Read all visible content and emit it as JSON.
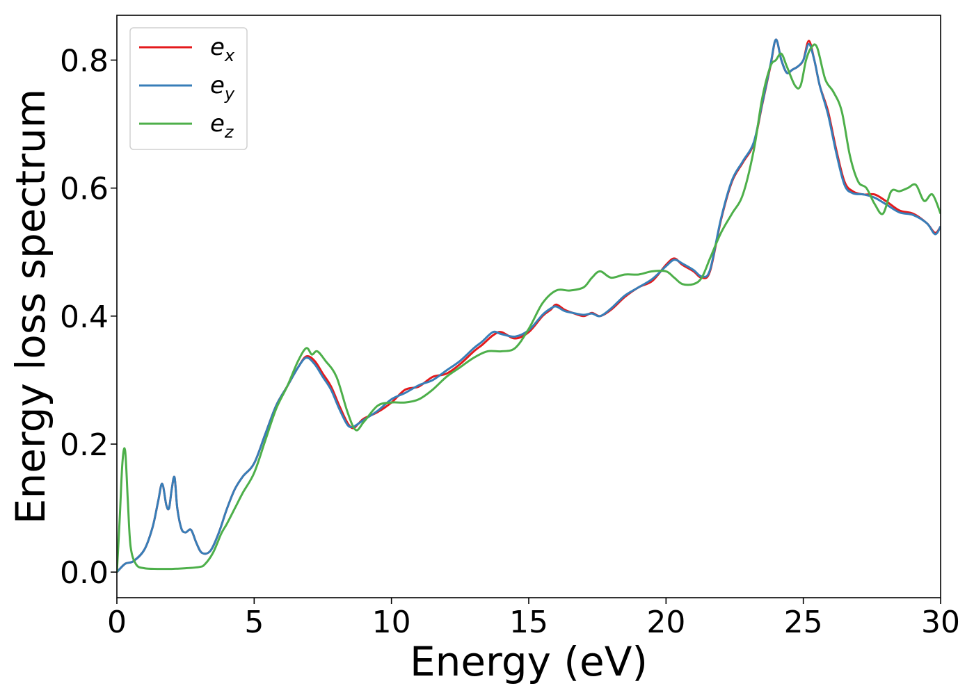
{
  "chart_data": {
    "type": "line",
    "title": "",
    "xlabel": "Energy (eV)",
    "ylabel": "Energy loss spectrum",
    "xlim": [
      0,
      30
    ],
    "ylim": [
      -0.04,
      0.87
    ],
    "xticks": [
      0,
      5,
      10,
      15,
      20,
      25,
      30
    ],
    "xtick_labels": [
      "0",
      "5",
      "10",
      "15",
      "20",
      "25",
      "30"
    ],
    "yticks": [
      0.0,
      0.2,
      0.4,
      0.6,
      0.8
    ],
    "ytick_labels": [
      "0.0",
      "0.2",
      "0.4",
      "0.6",
      "0.8"
    ],
    "grid": false,
    "legend_position": "top-left",
    "series": [
      {
        "name": "e_x",
        "legend_base": "e",
        "legend_sub": "x",
        "color": "#e41a1c",
        "x": [
          0,
          0.3,
          0.6,
          1.0,
          1.3,
          1.5,
          1.65,
          1.8,
          1.9,
          2.0,
          2.1,
          2.2,
          2.35,
          2.5,
          2.7,
          2.9,
          3.1,
          3.4,
          3.7,
          4.0,
          4.3,
          4.6,
          5.0,
          5.4,
          5.8,
          6.2,
          6.6,
          6.9,
          7.2,
          7.5,
          7.8,
          8.1,
          8.4,
          8.6,
          8.8,
          9.0,
          9.5,
          10.0,
          10.5,
          11.0,
          11.5,
          12.0,
          12.5,
          13.0,
          13.3,
          13.7,
          14.0,
          14.5,
          15.0,
          15.5,
          15.8,
          16.0,
          16.3,
          16.6,
          17.0,
          17.3,
          17.6,
          18.0,
          18.5,
          19.0,
          19.5,
          20.0,
          20.3,
          20.6,
          21.0,
          21.3,
          21.6,
          22.0,
          22.4,
          22.8,
          23.2,
          23.5,
          23.8,
          24.0,
          24.2,
          24.4,
          24.6,
          24.8,
          25.0,
          25.2,
          25.4,
          25.6,
          25.9,
          26.2,
          26.5,
          26.8,
          27.2,
          27.6,
          28.0,
          28.5,
          29.0,
          29.5,
          29.8,
          30.0
        ],
        "y": [
          0.0,
          0.013,
          0.017,
          0.035,
          0.07,
          0.11,
          0.138,
          0.105,
          0.1,
          0.13,
          0.148,
          0.1,
          0.068,
          0.062,
          0.066,
          0.045,
          0.03,
          0.033,
          0.06,
          0.098,
          0.13,
          0.15,
          0.17,
          0.215,
          0.26,
          0.29,
          0.32,
          0.337,
          0.33,
          0.31,
          0.29,
          0.26,
          0.233,
          0.225,
          0.232,
          0.24,
          0.25,
          0.265,
          0.285,
          0.29,
          0.305,
          0.31,
          0.325,
          0.345,
          0.355,
          0.37,
          0.375,
          0.365,
          0.375,
          0.4,
          0.41,
          0.418,
          0.41,
          0.405,
          0.4,
          0.405,
          0.4,
          0.41,
          0.43,
          0.445,
          0.455,
          0.48,
          0.49,
          0.48,
          0.47,
          0.46,
          0.47,
          0.55,
          0.61,
          0.64,
          0.67,
          0.73,
          0.79,
          0.832,
          0.8,
          0.78,
          0.785,
          0.79,
          0.8,
          0.83,
          0.8,
          0.76,
          0.72,
          0.66,
          0.61,
          0.595,
          0.59,
          0.59,
          0.58,
          0.565,
          0.56,
          0.545,
          0.53,
          0.54
        ]
      },
      {
        "name": "e_y",
        "legend_base": "e",
        "legend_sub": "y",
        "color": "#377eb8",
        "x": [
          0,
          0.3,
          0.6,
          1.0,
          1.3,
          1.5,
          1.65,
          1.8,
          1.9,
          2.0,
          2.1,
          2.2,
          2.35,
          2.5,
          2.7,
          2.9,
          3.1,
          3.4,
          3.7,
          4.0,
          4.3,
          4.6,
          5.0,
          5.4,
          5.8,
          6.2,
          6.6,
          6.9,
          7.2,
          7.5,
          7.8,
          8.1,
          8.4,
          8.6,
          8.8,
          9.0,
          9.5,
          10.0,
          10.5,
          11.0,
          11.5,
          12.0,
          12.5,
          13.0,
          13.3,
          13.7,
          14.0,
          14.5,
          15.0,
          15.5,
          15.8,
          16.0,
          16.3,
          16.6,
          17.0,
          17.3,
          17.6,
          18.0,
          18.5,
          19.0,
          19.5,
          20.0,
          20.3,
          20.6,
          21.0,
          21.3,
          21.6,
          22.0,
          22.4,
          22.8,
          23.2,
          23.5,
          23.8,
          24.0,
          24.2,
          24.4,
          24.6,
          24.8,
          25.0,
          25.2,
          25.4,
          25.6,
          25.9,
          26.2,
          26.5,
          26.8,
          27.2,
          27.6,
          28.0,
          28.5,
          29.0,
          29.5,
          29.8,
          30.0
        ],
        "y": [
          0.0,
          0.013,
          0.017,
          0.035,
          0.07,
          0.11,
          0.138,
          0.105,
          0.1,
          0.13,
          0.148,
          0.1,
          0.068,
          0.062,
          0.066,
          0.045,
          0.03,
          0.033,
          0.06,
          0.098,
          0.13,
          0.15,
          0.17,
          0.215,
          0.26,
          0.29,
          0.32,
          0.335,
          0.325,
          0.305,
          0.285,
          0.255,
          0.23,
          0.227,
          0.232,
          0.238,
          0.252,
          0.27,
          0.28,
          0.292,
          0.3,
          0.315,
          0.33,
          0.35,
          0.36,
          0.375,
          0.372,
          0.368,
          0.378,
          0.402,
          0.412,
          0.415,
          0.408,
          0.405,
          0.402,
          0.404,
          0.4,
          0.412,
          0.432,
          0.445,
          0.458,
          0.478,
          0.488,
          0.482,
          0.472,
          0.462,
          0.472,
          0.552,
          0.612,
          0.642,
          0.672,
          0.732,
          0.792,
          0.832,
          0.8,
          0.78,
          0.785,
          0.79,
          0.8,
          0.825,
          0.8,
          0.76,
          0.715,
          0.655,
          0.605,
          0.592,
          0.59,
          0.585,
          0.575,
          0.562,
          0.558,
          0.545,
          0.528,
          0.54
        ]
      },
      {
        "name": "e_z",
        "legend_base": "e",
        "legend_sub": "z",
        "color": "#4daf4a",
        "x": [
          0,
          0.1,
          0.2,
          0.3,
          0.4,
          0.5,
          0.7,
          1.0,
          1.5,
          2.0,
          2.5,
          3.0,
          3.2,
          3.5,
          3.8,
          4.0,
          4.3,
          4.6,
          5.0,
          5.4,
          5.8,
          6.2,
          6.6,
          6.9,
          7.1,
          7.3,
          7.6,
          8.0,
          8.4,
          8.7,
          9.0,
          9.5,
          10.0,
          10.5,
          11.0,
          11.5,
          12.0,
          12.5,
          13.0,
          13.5,
          14.0,
          14.5,
          15.0,
          15.5,
          16.0,
          16.5,
          17.0,
          17.3,
          17.6,
          18.0,
          18.5,
          19.0,
          19.5,
          20.0,
          20.3,
          20.6,
          21.0,
          21.3,
          21.6,
          22.0,
          22.4,
          22.8,
          23.2,
          23.5,
          23.8,
          24.0,
          24.2,
          24.4,
          24.7,
          24.9,
          25.1,
          25.3,
          25.5,
          25.8,
          26.1,
          26.4,
          26.7,
          27.0,
          27.3,
          27.6,
          27.9,
          28.2,
          28.5,
          28.8,
          29.1,
          29.4,
          29.7,
          30.0
        ],
        "y": [
          0.0,
          0.08,
          0.17,
          0.19,
          0.11,
          0.04,
          0.012,
          0.006,
          0.005,
          0.005,
          0.006,
          0.008,
          0.012,
          0.03,
          0.06,
          0.075,
          0.1,
          0.125,
          0.155,
          0.205,
          0.255,
          0.29,
          0.33,
          0.35,
          0.34,
          0.345,
          0.33,
          0.305,
          0.25,
          0.222,
          0.235,
          0.26,
          0.265,
          0.265,
          0.27,
          0.285,
          0.305,
          0.32,
          0.335,
          0.345,
          0.345,
          0.35,
          0.38,
          0.42,
          0.44,
          0.44,
          0.445,
          0.46,
          0.47,
          0.46,
          0.465,
          0.465,
          0.47,
          0.47,
          0.46,
          0.45,
          0.45,
          0.46,
          0.49,
          0.53,
          0.56,
          0.59,
          0.66,
          0.74,
          0.79,
          0.8,
          0.81,
          0.79,
          0.76,
          0.76,
          0.8,
          0.82,
          0.82,
          0.77,
          0.75,
          0.72,
          0.65,
          0.61,
          0.6,
          0.575,
          0.56,
          0.595,
          0.595,
          0.6,
          0.605,
          0.58,
          0.59,
          0.56
        ]
      }
    ]
  }
}
